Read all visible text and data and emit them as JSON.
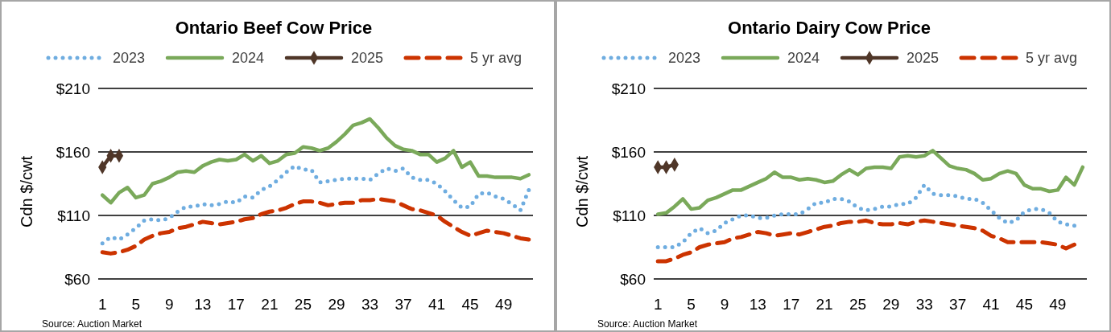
{
  "chart_data": [
    {
      "type": "line",
      "title": "Ontario Beef Cow Price",
      "ylabel": "Cdn $/cwt",
      "annotations": [
        "Source: Auction Market"
      ],
      "x": [
        1,
        2,
        3,
        4,
        5,
        6,
        7,
        8,
        9,
        10,
        11,
        12,
        13,
        14,
        15,
        16,
        17,
        18,
        19,
        20,
        21,
        22,
        23,
        24,
        25,
        26,
        27,
        28,
        29,
        30,
        31,
        32,
        33,
        34,
        35,
        36,
        37,
        38,
        39,
        40,
        41,
        42,
        43,
        44,
        45,
        46,
        47,
        48,
        49,
        50,
        51,
        52
      ],
      "xlim": [
        0.5,
        52.5
      ],
      "xticks": [
        1,
        5,
        9,
        13,
        17,
        21,
        25,
        29,
        33,
        37,
        41,
        45,
        49
      ],
      "ylim": [
        60,
        210
      ],
      "yticks": [
        {
          "value": 60,
          "label": "$60"
        },
        {
          "value": 110,
          "label": "$110"
        },
        {
          "value": 160,
          "label": "$160"
        },
        {
          "value": 210,
          "label": "$210"
        }
      ],
      "grid": "y",
      "legend": "top",
      "series": [
        {
          "name": "2023",
          "color": "#6fade0",
          "line_style": "dotted",
          "marker": "none",
          "values": [
            88,
            93,
            91,
            95,
            100,
            106,
            107,
            106,
            108,
            113,
            117,
            117,
            119,
            118,
            119,
            121,
            120,
            125,
            124,
            130,
            133,
            138,
            144,
            149,
            146,
            146,
            136,
            137,
            138,
            139,
            139,
            139,
            138,
            143,
            147,
            145,
            147,
            140,
            138,
            138,
            135,
            129,
            122,
            116,
            117,
            127,
            128,
            125,
            123,
            119,
            114,
            130
          ]
        },
        {
          "name": "2024",
          "color": "#7aa95a",
          "line_style": "solid",
          "marker": "none",
          "values": [
            126,
            120,
            128,
            132,
            124,
            126,
            135,
            137,
            140,
            144,
            145,
            144,
            149,
            152,
            154,
            153,
            154,
            158,
            153,
            157,
            151,
            153,
            158,
            159,
            164,
            163,
            161,
            163,
            168,
            174,
            181,
            183,
            186,
            179,
            171,
            165,
            162,
            161,
            158,
            158,
            152,
            155,
            161,
            148,
            152,
            141,
            141,
            140,
            140,
            140,
            139,
            142
          ]
        },
        {
          "name": "2025",
          "color": "#4f3628",
          "line_style": "solid",
          "marker": "diamond",
          "x": [
            1,
            2,
            3
          ],
          "values": [
            148,
            157,
            157
          ]
        },
        {
          "name": "5 yr avg",
          "color": "#cc3300",
          "line_style": "dashed",
          "marker": "none",
          "values": [
            81,
            80,
            81,
            83,
            86,
            91,
            94,
            96,
            97,
            100,
            101,
            103,
            105,
            104,
            103,
            104,
            105,
            107,
            108,
            111,
            113,
            114,
            116,
            119,
            121,
            121,
            120,
            118,
            119,
            120,
            120,
            122,
            122,
            123,
            122,
            121,
            118,
            115,
            114,
            112,
            110,
            105,
            101,
            97,
            94,
            96,
            98,
            97,
            96,
            94,
            92,
            91
          ]
        }
      ]
    },
    {
      "type": "line",
      "title": "Ontario Dairy Cow Price",
      "ylabel": "Cdn $/cwt",
      "annotations": [
        "Source: Auction Market"
      ],
      "x": [
        1,
        2,
        3,
        4,
        5,
        6,
        7,
        8,
        9,
        10,
        11,
        12,
        13,
        14,
        15,
        16,
        17,
        18,
        19,
        20,
        21,
        22,
        23,
        24,
        25,
        26,
        27,
        28,
        29,
        30,
        31,
        32,
        33,
        34,
        35,
        36,
        37,
        38,
        39,
        40,
        41,
        42,
        43,
        44,
        45,
        46,
        47,
        48,
        49,
        50,
        51,
        52
      ],
      "xlim": [
        0.5,
        52.5
      ],
      "xticks": [
        1,
        5,
        9,
        13,
        17,
        21,
        25,
        29,
        33,
        37,
        41,
        45,
        49
      ],
      "ylim": [
        60,
        210
      ],
      "yticks": [
        {
          "value": 60,
          "label": "$60"
        },
        {
          "value": 110,
          "label": "$110"
        },
        {
          "value": 160,
          "label": "$160"
        },
        {
          "value": 210,
          "label": "$210"
        }
      ],
      "grid": "y",
      "legend": "top",
      "series": [
        {
          "name": "2023",
          "color": "#6fade0",
          "line_style": "dotted",
          "marker": "none",
          "values": [
            85,
            85,
            85,
            89,
            96,
            100,
            96,
            98,
            104,
            107,
            110,
            110,
            108,
            108,
            110,
            111,
            111,
            111,
            115,
            120,
            120,
            123,
            123,
            121,
            116,
            114,
            115,
            117,
            117,
            119,
            119,
            124,
            134,
            127,
            126,
            126,
            125,
            123,
            123,
            120,
            114,
            108,
            104,
            106,
            113,
            115,
            115,
            112,
            105,
            103,
            102,
            null
          ]
        },
        {
          "name": "2024",
          "color": "#7aa95a",
          "line_style": "solid",
          "marker": "none",
          "values": [
            111,
            112,
            117,
            123,
            115,
            116,
            122,
            124,
            127,
            130,
            130,
            133,
            136,
            139,
            144,
            140,
            140,
            138,
            139,
            138,
            136,
            137,
            142,
            146,
            142,
            147,
            148,
            148,
            147,
            156,
            157,
            156,
            157,
            161,
            155,
            149,
            147,
            146,
            143,
            138,
            139,
            143,
            145,
            143,
            134,
            131,
            131,
            129,
            130,
            140,
            134,
            148
          ]
        },
        {
          "name": "2025",
          "color": "#4f3628",
          "line_style": "solid",
          "marker": "diamond",
          "x": [
            1,
            2,
            3
          ],
          "values": [
            148,
            148,
            150
          ]
        },
        {
          "name": "5 yr avg",
          "color": "#cc3300",
          "line_style": "dashed",
          "marker": "none",
          "values": [
            74,
            74,
            76,
            79,
            81,
            85,
            87,
            88,
            89,
            92,
            93,
            95,
            97,
            96,
            94,
            95,
            96,
            95,
            97,
            99,
            101,
            102,
            104,
            105,
            105,
            106,
            104,
            103,
            103,
            104,
            103,
            105,
            106,
            105,
            104,
            103,
            102,
            101,
            100,
            98,
            94,
            92,
            89,
            89,
            89,
            89,
            89,
            88,
            87,
            84,
            87,
            null
          ]
        }
      ]
    }
  ]
}
